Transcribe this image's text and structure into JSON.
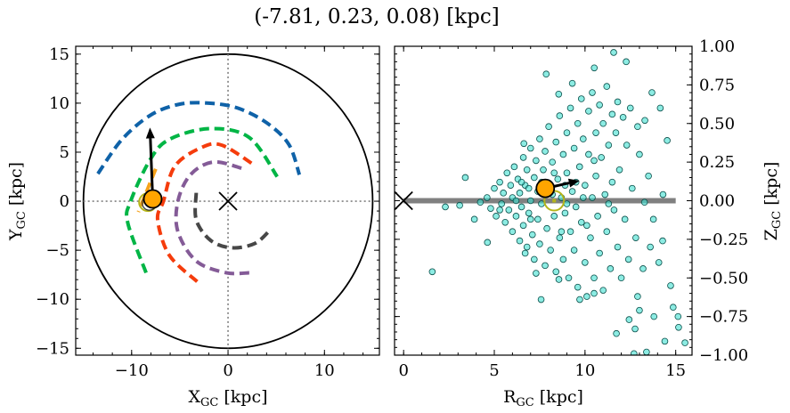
{
  "title": "(-7.81, 0.23, 0.08) [kpc]",
  "chart_data": [
    {
      "type": "line",
      "panel": "left",
      "xlabel": {
        "main": "X",
        "sub": "GC",
        "unit": " [kpc]"
      },
      "ylabel": {
        "main": "Y",
        "sub": "GC",
        "unit": " [kpc]"
      },
      "xlim": [
        -15.8,
        15.7
      ],
      "ylim": [
        -15.7,
        15.8
      ],
      "xticks": [
        -10,
        0,
        10
      ],
      "xtick_labels": [
        "−10",
        "0",
        "10"
      ],
      "yticks": [
        -15,
        -10,
        -5,
        0,
        5,
        10,
        15
      ],
      "ytick_labels": [
        "−15",
        "−10",
        "−5",
        "0",
        "5",
        "10",
        "15"
      ],
      "boundary_circle_radius": 15,
      "reference_lines": {
        "x": 0,
        "y": 0,
        "style": "dotted",
        "color": "#808080"
      },
      "galactic_center_marker": {
        "x": 0,
        "y": 0,
        "symbol": "x"
      },
      "series": [
        {
          "color": "#0f62a8",
          "style": "dashed",
          "points": [
            [
              -13.5,
              2.8
            ],
            [
              -11,
              6.3
            ],
            [
              -8,
              8.8
            ],
            [
              -5,
              9.9
            ],
            [
              -2,
              10.0
            ],
            [
              1,
              9.5
            ],
            [
              4,
              8.0
            ],
            [
              6.3,
              5.8
            ],
            [
              7.4,
              2.7
            ]
          ]
        },
        {
          "color": "#00b545",
          "style": "dashed",
          "points": [
            [
              -8.5,
              -7.3
            ],
            [
              -10.4,
              -2.2
            ],
            [
              -10.1,
              0
            ],
            [
              -8.1,
              4.2
            ],
            [
              -6.1,
              6.3
            ],
            [
              -1.9,
              7.4
            ],
            [
              2.2,
              6.5
            ],
            [
              5.1,
              2.5
            ]
          ]
        },
        {
          "color": "#f53c0c",
          "style": "dashed",
          "points": [
            [
              -3.2,
              -8.2
            ],
            [
              -6.1,
              -5.5
            ],
            [
              -7.3,
              -1.9
            ],
            [
              -6.7,
              0
            ],
            [
              -5.5,
              3.6
            ],
            [
              -2.7,
              5.5
            ],
            [
              -0.6,
              5.7
            ],
            [
              2.7,
              3.7
            ]
          ]
        },
        {
          "color": "#845b97",
          "style": "dashed",
          "points": [
            [
              2.2,
              -7.3
            ],
            [
              -0.2,
              -7.3
            ],
            [
              -3.3,
              -6.1
            ],
            [
              -5.2,
              -3.1
            ],
            [
              -5.2,
              0
            ],
            [
              -3.9,
              2.7
            ],
            [
              -1.5,
              4.0
            ],
            [
              1.6,
              3.3
            ]
          ]
        },
        {
          "color": "#474747",
          "style": "dashed",
          "points": [
            [
              -3.3,
              0.85
            ],
            [
              -3.3,
              -1.9
            ],
            [
              -1.8,
              -4.0
            ],
            [
              0.4,
              -4.75
            ],
            [
              2.8,
              -4.3
            ],
            [
              4.4,
              -2.9
            ]
          ]
        },
        {
          "color": "#f5a21a",
          "style": "dashed",
          "points": [
            [
              -7.5,
              3.3
            ],
            [
              -9.3,
              -1.1
            ]
          ]
        }
      ],
      "sun": {
        "x": -7.81,
        "y": 0.23,
        "color": "#ffa500"
      },
      "velocity_arrow_tip": {
        "x": -8.1,
        "y": 7.5
      },
      "cluster_ring": {
        "x": -8.3,
        "y": -0.1,
        "color": "#b5b51a"
      }
    },
    {
      "type": "scatter",
      "panel": "right",
      "xlabel": {
        "main": "R",
        "sub": "GC",
        "unit": " [kpc]"
      },
      "ylabel": {
        "main": "Z",
        "sub": "GC",
        "unit": " [kpc]"
      },
      "xlim": [
        -0.5,
        15.9
      ],
      "ylim": [
        -1.0,
        1.0
      ],
      "xticks": [
        0,
        5,
        10,
        15
      ],
      "xtick_labels": [
        "0",
        "5",
        "10",
        "15"
      ],
      "yticks": [
        1.0,
        0.75,
        0.5,
        0.25,
        0.0,
        -0.25,
        -0.5,
        -0.75,
        -1.0
      ],
      "ytick_labels": [
        "1.00",
        "0.75",
        "0.50",
        "0.25",
        "0.00",
        "−0.25",
        "−0.50",
        "−0.75",
        "−1.00"
      ],
      "y_axis_side": "right",
      "disk_line": {
        "z": 0,
        "r_range": [
          0,
          15
        ],
        "color": "#808080"
      },
      "galactic_center_marker": {
        "x": 0,
        "y": 0,
        "symbol": "x"
      },
      "point_color": "#40e0d0",
      "points": [
        [
          4.6,
          0.02
        ],
        [
          4.8,
          -0.05
        ],
        [
          5.0,
          0.08
        ],
        [
          5.1,
          -0.1
        ],
        [
          5.3,
          0.12
        ],
        [
          5.4,
          -0.02
        ],
        [
          5.5,
          0.05
        ],
        [
          5.6,
          -0.14
        ],
        [
          5.7,
          0.18
        ],
        [
          5.8,
          -0.06
        ],
        [
          5.9,
          0.1
        ],
        [
          6.0,
          -0.2
        ],
        [
          6.0,
          0.02
        ],
        [
          6.1,
          0.22
        ],
        [
          6.2,
          -0.1
        ],
        [
          6.3,
          0.14
        ],
        [
          6.4,
          -0.26
        ],
        [
          6.4,
          0.05
        ],
        [
          6.5,
          -0.04
        ],
        [
          6.6,
          0.28
        ],
        [
          6.6,
          -0.16
        ],
        [
          6.7,
          0.1
        ],
        [
          6.8,
          -0.3
        ],
        [
          6.8,
          0.2
        ],
        [
          6.9,
          -0.08
        ],
        [
          7.0,
          0.34
        ],
        [
          7.0,
          0.0
        ],
        [
          7.1,
          -0.22
        ],
        [
          7.2,
          0.15
        ],
        [
          7.2,
          -0.38
        ],
        [
          7.3,
          0.26
        ],
        [
          7.4,
          -0.12
        ],
        [
          7.4,
          0.06
        ],
        [
          7.5,
          0.4
        ],
        [
          7.5,
          -0.28
        ],
        [
          7.6,
          -0.02
        ],
        [
          7.7,
          0.2
        ],
        [
          7.8,
          -0.42
        ],
        [
          7.8,
          0.32
        ],
        [
          7.9,
          -0.18
        ],
        [
          8.0,
          0.1
        ],
        [
          8.0,
          0.48
        ],
        [
          8.1,
          -0.32
        ],
        [
          8.2,
          0.04
        ],
        [
          8.2,
          0.25
        ],
        [
          8.3,
          -0.1
        ],
        [
          8.4,
          0.38
        ],
        [
          8.4,
          -0.46
        ],
        [
          8.5,
          0.14
        ],
        [
          8.6,
          -0.24
        ],
        [
          8.6,
          0.55
        ],
        [
          8.7,
          0.02
        ],
        [
          8.8,
          0.3
        ],
        [
          8.8,
          -0.38
        ],
        [
          8.9,
          -0.08
        ],
        [
          9.0,
          0.44
        ],
        [
          9.0,
          0.18
        ],
        [
          9.1,
          -0.5
        ],
        [
          9.2,
          -0.2
        ],
        [
          9.2,
          0.6
        ],
        [
          9.3,
          0.06
        ],
        [
          9.4,
          0.34
        ],
        [
          9.4,
          -0.32
        ],
        [
          9.5,
          -0.04
        ],
        [
          9.6,
          0.5
        ],
        [
          9.6,
          -0.56
        ],
        [
          9.7,
          0.22
        ],
        [
          9.8,
          -0.14
        ],
        [
          9.8,
          0.66
        ],
        [
          9.9,
          0.4
        ],
        [
          10.0,
          -0.4
        ],
        [
          10.0,
          0.1
        ],
        [
          10.1,
          -0.62
        ],
        [
          10.2,
          0.3
        ],
        [
          10.2,
          0.58
        ],
        [
          10.3,
          -0.24
        ],
        [
          10.4,
          0.02
        ],
        [
          10.4,
          0.7
        ],
        [
          10.5,
          -0.5
        ],
        [
          10.6,
          0.44
        ],
        [
          10.6,
          0.16
        ],
        [
          10.7,
          -0.1
        ],
        [
          10.8,
          0.62
        ],
        [
          10.8,
          -0.34
        ],
        [
          10.9,
          0.28
        ],
        [
          11.0,
          -0.58
        ],
        [
          11.0,
          0.5
        ],
        [
          11.1,
          0.04
        ],
        [
          11.2,
          0.74
        ],
        [
          11.2,
          -0.2
        ],
        [
          11.3,
          0.36
        ],
        [
          11.4,
          -0.44
        ],
        [
          11.5,
          0.56
        ],
        [
          11.5,
          0.12
        ],
        [
          11.6,
          -0.06
        ],
        [
          11.7,
          0.44
        ],
        [
          11.8,
          -0.3
        ],
        [
          11.8,
          0.64
        ],
        [
          11.9,
          0.2
        ],
        [
          12.0,
          -0.5
        ],
        [
          12.1,
          0.54
        ],
        [
          12.2,
          -0.12
        ],
        [
          12.3,
          0.36
        ],
        [
          12.4,
          -0.38
        ],
        [
          12.5,
          0.6
        ],
        [
          12.6,
          0.08
        ],
        [
          12.8,
          -0.24
        ],
        [
          12.9,
          0.48
        ],
        [
          13.0,
          0.3
        ],
        [
          13.2,
          -0.44
        ],
        [
          13.3,
          0.52
        ],
        [
          13.5,
          0.16
        ],
        [
          13.6,
          -0.3
        ],
        [
          6.2,
          0.0
        ],
        [
          6.9,
          0.08
        ],
        [
          7.6,
          0.12
        ],
        [
          8.3,
          0.18
        ],
        [
          9.0,
          -0.02
        ],
        [
          9.5,
          0.12
        ],
        [
          10.1,
          -0.16
        ],
        [
          7.0,
          -0.12
        ],
        [
          8.7,
          -0.2
        ],
        [
          9.9,
          0.02
        ],
        [
          10.5,
          0.26
        ],
        [
          11.3,
          -0.02
        ],
        [
          5.3,
          -0.06
        ],
        [
          6.5,
          0.12
        ],
        [
          7.9,
          0.06
        ],
        [
          8.9,
          0.1
        ],
        [
          11.58,
          0.96
        ],
        [
          12.27,
          0.9
        ],
        [
          10.51,
          0.86
        ],
        [
          7.86,
          0.82
        ],
        [
          9.3,
          0.76
        ],
        [
          8.55,
          0.69
        ],
        [
          13.69,
          0.7
        ],
        [
          14.15,
          0.6
        ],
        [
          14.53,
          0.39
        ],
        [
          6.63,
          0.37
        ],
        [
          3.4,
          0.15
        ],
        [
          2.3,
          -0.04
        ],
        [
          3.09,
          -0.03
        ],
        [
          1.58,
          -0.46
        ],
        [
          7.58,
          -0.64
        ],
        [
          9.71,
          -0.64
        ],
        [
          11.73,
          -0.86
        ],
        [
          14.72,
          -0.55
        ],
        [
          14.86,
          -0.69
        ],
        [
          15.13,
          -0.75
        ],
        [
          15.16,
          -0.82
        ],
        [
          14.4,
          -0.91
        ],
        [
          15.51,
          -0.92
        ],
        [
          12.7,
          -0.99
        ],
        [
          13.39,
          -0.98
        ],
        [
          12.43,
          -0.77
        ],
        [
          12.76,
          -0.83
        ],
        [
          13.8,
          -0.75
        ],
        [
          13.0,
          -0.71
        ],
        [
          12.9,
          -0.62
        ],
        [
          14.07,
          -0.4
        ],
        [
          14.28,
          -0.26
        ],
        [
          14.3,
          0.04
        ],
        [
          13.77,
          -0.12
        ],
        [
          13.28,
          -0.01
        ],
        [
          10.5,
          -0.6
        ],
        [
          8.56,
          -0.51
        ],
        [
          7.3,
          -0.47
        ],
        [
          6.7,
          -0.34
        ],
        [
          4.62,
          -0.27
        ],
        [
          3.9,
          -0.12
        ],
        [
          4.23,
          -0.01
        ]
      ],
      "sun": {
        "x": 7.81,
        "y": 0.08,
        "color": "#ffa500"
      },
      "velocity_arrow_tip": {
        "x": 9.7,
        "y": 0.13
      },
      "cluster_ring": {
        "x": 8.3,
        "y": 0.0,
        "color": "#b5b51a"
      }
    }
  ]
}
